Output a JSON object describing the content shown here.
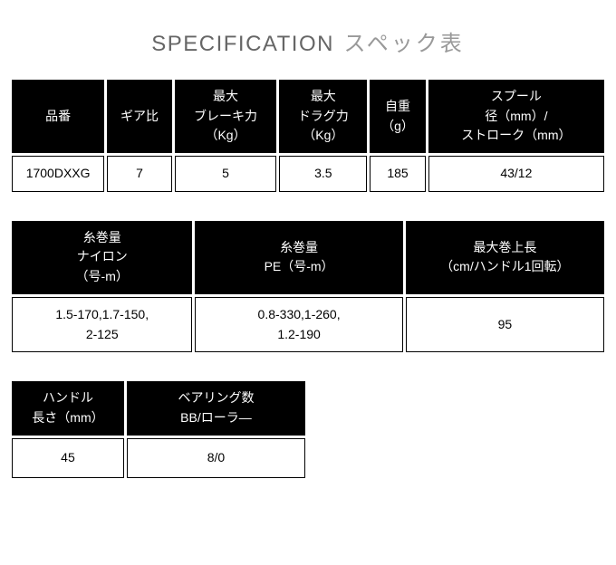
{
  "title": {
    "en": "SPECIFICATION",
    "jp": "スペック表"
  },
  "table1": {
    "headers": {
      "c1": "品番",
      "c2": "ギア比",
      "c3_l1": "最大",
      "c3_l2": "ブレーキ力",
      "c3_l3": "（Kg）",
      "c4_l1": "最大",
      "c4_l2": "ドラグ力",
      "c4_l3": "（Kg）",
      "c5_l1": "自重",
      "c5_l2": "（g）",
      "c6_l1": "スプール",
      "c6_l2": "径（mm）/",
      "c6_l3": "ストローク（mm）"
    },
    "row": {
      "c1": "1700DXXG",
      "c2": "7",
      "c3": "5",
      "c4": "3.5",
      "c5": "185",
      "c6": "43/12"
    }
  },
  "table2": {
    "headers": {
      "c1_l1": "糸巻量",
      "c1_l2": "ナイロン",
      "c1_l3": "（号-m）",
      "c2_l1": "糸巻量",
      "c2_l2": "PE（号-m）",
      "c3_l1": "最大巻上長",
      "c3_l2": "（cm/ハンドル1回転）"
    },
    "row": {
      "c1_l1": "1.5-170,1.7-150,",
      "c1_l2": "2-125",
      "c2_l1": "0.8-330,1-260,",
      "c2_l2": "1.2-190",
      "c3": "95"
    }
  },
  "table3": {
    "headers": {
      "c1_l1": "ハンドル",
      "c1_l2": "長さ（mm）",
      "c2_l1": "ベアリング数",
      "c2_l2": "BB/ローラ―"
    },
    "row": {
      "c1": "45",
      "c2": "8/0"
    }
  }
}
